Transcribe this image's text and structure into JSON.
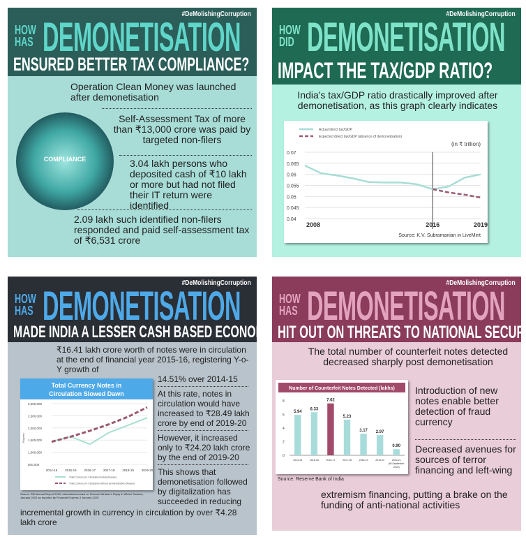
{
  "hashtag": "#DeMolishingCorruption",
  "panels": {
    "tax_compliance": {
      "how": "HOW",
      "has": "HAS",
      "big": "DEMONETISATION",
      "sub": "ENSURED BETTER TAX COMPLIANCE?",
      "p1": "Operation Clean Money was launched after demonetisation",
      "p2": "Self-Assessment Tax of more than ₹13,000 crore was paid by targeted non-filers",
      "p3": "3.04 lakh persons who deposited cash of ₹10 lakh or more but had not filed their IT return were identified",
      "p4": "2.09 lakh such identified non-filers responded and paid self-assessment tax of ₹6,531 crore",
      "graphic_label": "COMPLIANCE",
      "colors": {
        "header": "#2b5e59",
        "title": "#5fd6c9",
        "body": "#a7dcd7"
      }
    },
    "tax_gdp": {
      "how": "HOW",
      "did": "DID",
      "big": "DEMONETISATION",
      "sub": "IMPACT THE TAX/GDP RATIO?",
      "p1": "India's tax/GDP ratio drastically improved after demonetisation, as this graph clearly indicates",
      "colors": {
        "header": "#1e6a52",
        "title": "#7fe3c9",
        "body": "#b4f1e1"
      }
    },
    "cash_economy": {
      "how": "HOW",
      "has": "HAS",
      "big": "DEMONETISATION",
      "sub": "MADE INDIA A LESSER CASH BASED ECONOMY?",
      "p1": "₹16.41 lakh crore worth of notes were in circulation at the end of financial year 2015-16, registering Y-o-Y growth of",
      "p1b": "14.51% over 2014-15",
      "p2": "At this rate, notes in circulation would have increased to ₹28.49 lakh crore by end of 2019-20",
      "p3": "However, it increased only to ₹24.20 lakh crore by the end of 2019-20",
      "p4": "This shows that demonetisation followed by digitalization has succeeded in reducing",
      "p4b": "incremental growth in currency in circulation by over ₹4.28 lakh crore",
      "source": "Source: RBI Annual Report 2020, calculations based on Finance Minister's Reply in Winter Session, January 2020 as reported by Financial Express 3 January 2020",
      "colors": {
        "header": "#2a2e35",
        "title": "#4ea9e8",
        "body": "#b8c3cb"
      }
    },
    "security": {
      "how": "HOW",
      "has": "HAS",
      "big": "DEMONETISATION",
      "sub": "HIT OUT ON THREATS TO NATIONAL SECURITY?",
      "p1": "The total number of counterfeit notes detected decreased sharply post demonetisation",
      "p2": "Introduction of new notes enable better detection of fraud currency",
      "p3": "Decreased avenues for sources of terror financing and left-wing",
      "p3b": "extremism financing, putting a brake on the funding of anti-national activities",
      "source": "Source: Reserve Bank of India",
      "colors": {
        "header": "#8a3c5a",
        "title": "#e3a3bf",
        "body": "#e9cdd8"
      }
    }
  },
  "chart_data": [
    {
      "type": "line",
      "title": "",
      "unit": "(in ₹ trillion)",
      "ylim": [
        0.04,
        0.07
      ],
      "yticks": [
        "0.07",
        "0.065",
        "0.06",
        "0.055",
        "0.05",
        "0.045",
        "0.04"
      ],
      "xlabels": [
        "2008",
        "2016",
        "2019"
      ],
      "xrange": [
        2008,
        2019
      ],
      "marker_year": 2016,
      "series": [
        {
          "name": "Actual direct tax/GDP",
          "color": "#a8ddd6",
          "style": "solid",
          "x": [
            2008,
            2009,
            2010,
            2011,
            2012,
            2013,
            2014,
            2015,
            2016,
            2017,
            2018,
            2019
          ],
          "y": [
            0.064,
            0.0605,
            0.0595,
            0.0582,
            0.0565,
            0.0563,
            0.0563,
            0.0555,
            0.0533,
            0.0545,
            0.0585,
            0.06
          ]
        },
        {
          "name": "Expected direct tax/GDP (absence of demonetisation)",
          "color": "#9b5a72",
          "style": "dashed",
          "x": [
            2016,
            2017,
            2018,
            2019
          ],
          "y": [
            0.0533,
            0.0518,
            0.0508,
            0.0495
          ]
        }
      ],
      "source": "Source: K.V. Subramanian in LiveMint"
    },
    {
      "type": "line",
      "title": "Total Currency Notes in Circulation Slowed Dawn",
      "ylabel": "Rupees",
      "ylim": [
        500000,
        3000000
      ],
      "yticks": [
        "3,000,000",
        "2,500,000",
        "2,000,000",
        "1,500,000",
        "1,000,000",
        "500,000"
      ],
      "categories": [
        "2014-15",
        "2015-16",
        "2016-17",
        "2017-18",
        "2018-19",
        "2019-20"
      ],
      "series": [
        {
          "name": "Total Currency in Circulation Actual (Rupee)",
          "color": "#a8e0d2",
          "style": "solid",
          "values": [
            1430000,
            1640000,
            1330000,
            1810000,
            2110000,
            2420000
          ]
        },
        {
          "name": "Total Currency in Circulation without demonetisation (Rupee)",
          "color": "#9b5a72",
          "style": "dashed",
          "values": [
            1430000,
            1640000,
            1880000,
            2150000,
            2460000,
            2850000
          ]
        }
      ]
    },
    {
      "type": "bar",
      "title": "Number of Counterfeit Notes Detected (lakhs)",
      "ylim": [
        0,
        8
      ],
      "yticks": [
        "8",
        "6",
        "4",
        "2",
        "0"
      ],
      "categories": [
        "2014-15",
        "2015-16",
        "2016-17",
        "2017-18",
        "2018-19",
        "2019-20",
        "2020-21 (till September 2020)"
      ],
      "values": [
        5.94,
        6.33,
        7.62,
        5.23,
        3.17,
        2.97,
        0.9
      ],
      "labels": [
        "5.94",
        "6.33",
        "7.62",
        "5.23",
        "3.17",
        "2.97",
        "0.90"
      ],
      "highlight_index": 2,
      "color": "#a8dcdb",
      "highlight_color": "#a24a6a"
    }
  ]
}
